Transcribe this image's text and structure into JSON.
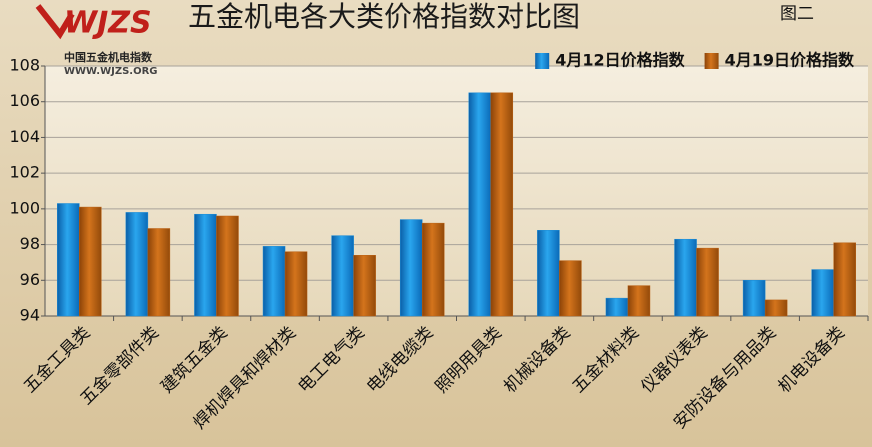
{
  "chart_data": {
    "type": "bar",
    "title": "五金机电各大类价格指数对比图",
    "subtitle": "图二",
    "logo_text": "WJZS",
    "logo_subtitle": "中国五金机电指数",
    "logo_url": "WWW.WJZS.ORG",
    "categories": [
      "五金工具类",
      "五金零部件类",
      "建筑五金类",
      "焊机焊具和焊材类",
      "电工电气类",
      "电线电缆类",
      "照明用具类",
      "机械设备类",
      "五金材料类",
      "仪器仪表类",
      "安防设备与用品类",
      "机电设备类"
    ],
    "series": [
      {
        "name": "4月12日价格指数",
        "color": "#1a8ad4",
        "values": [
          100.3,
          99.8,
          99.7,
          97.9,
          98.5,
          99.4,
          106.5,
          98.8,
          95.0,
          98.3,
          96.0,
          96.6
        ]
      },
      {
        "name": "4月19日价格指数",
        "color": "#b95f12",
        "values": [
          100.1,
          98.9,
          99.6,
          97.6,
          97.4,
          99.2,
          106.5,
          97.1,
          95.7,
          97.8,
          94.9,
          98.1
        ]
      }
    ],
    "ylim": [
      94,
      108
    ],
    "yticks": [
      94,
      96,
      98,
      100,
      102,
      104,
      106,
      108
    ],
    "grid": true,
    "legend": "top-right"
  }
}
